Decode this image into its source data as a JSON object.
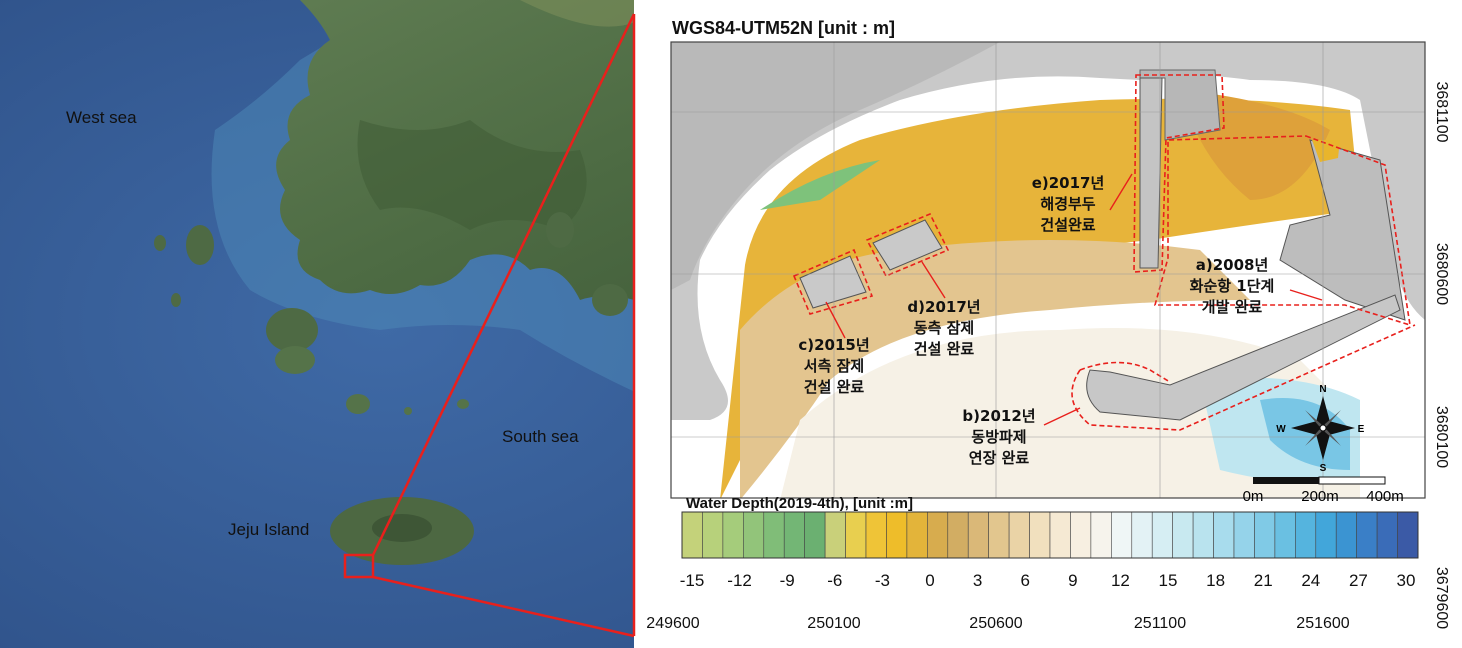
{
  "overview_map": {
    "labels": {
      "west_sea": "West sea",
      "south_sea": "South sea",
      "jeju_island": "Jeju Island"
    }
  },
  "detail_map": {
    "title": "WGS84-UTM52N [unit : m]",
    "x_ticks": [
      "249600",
      "250100",
      "250600",
      "251100",
      "251600"
    ],
    "y_ticks": [
      "3681100",
      "3680600",
      "3680100",
      "3679600"
    ],
    "annotations": {
      "a_line1": "a)2008년",
      "a_line2": "화순항 1단계",
      "a_line3": "개발 완료",
      "b_line1": "b)2012년",
      "b_line2": "동방파제",
      "b_line3": "연장 완료",
      "c_line1": "c)2015년",
      "c_line2": "서측 잠제",
      "c_line3": "건설 완료",
      "d_line1": "d)2017년",
      "d_line2": "동측 잠제",
      "d_line3": "건설 완료",
      "e_line1": "e)2017년",
      "e_line2": "해경부두",
      "e_line3": "건설완료"
    },
    "compass": {
      "n": "N",
      "s": "S",
      "e": "E",
      "w": "W"
    },
    "scale_bar": {
      "label_0": "0m",
      "label_200": "200m",
      "label_400": "400m"
    },
    "legend": {
      "title": "Water Depth(2019-4th), [unit :m]",
      "tick_labels": [
        "-15",
        "-12",
        "-9",
        "-6",
        "-3",
        "0",
        "3",
        "6",
        "9",
        "12",
        "15",
        "18",
        "21",
        "24",
        "27",
        "30"
      ],
      "colors": [
        "#c4d27a",
        "#b7d17b",
        "#a5cc7b",
        "#92c47a",
        "#80bd78",
        "#73b675",
        "#6bb071",
        "#c9d07a",
        "#e8cf4f",
        "#efc437",
        "#eebd2a",
        "#e3b43a",
        "#d7ac4e",
        "#d2ad63",
        "#dab878",
        "#e2c68e",
        "#ead3a6",
        "#f1e0be",
        "#f5e9d3",
        "#f7efe1",
        "#f6f3ec",
        "#eff6f6",
        "#e3f2f5",
        "#d6eef3",
        "#c8e9f0",
        "#b9e3ee",
        "#a8dced",
        "#95d3ea",
        "#80cae6",
        "#6ac0e2",
        "#55b4de",
        "#42a6da",
        "#3b94d2",
        "#3a7fc7",
        "#3a6cb8",
        "#3b5aa6"
      ]
    }
  }
}
